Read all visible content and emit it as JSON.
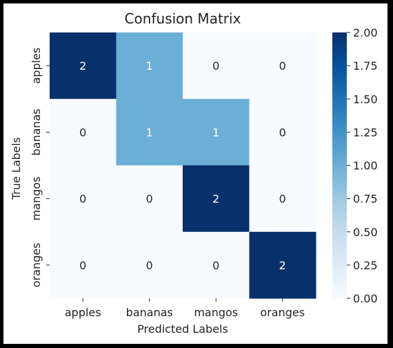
{
  "chart_data": {
    "type": "heatmap",
    "title": "Confusion Matrix",
    "xlabel": "Predicted Labels",
    "ylabel": "True Labels",
    "x_categories": [
      "apples",
      "bananas",
      "mangos",
      "oranges"
    ],
    "y_categories": [
      "apples",
      "bananas",
      "mangos",
      "oranges"
    ],
    "values": [
      [
        2,
        1,
        0,
        0
      ],
      [
        0,
        1,
        1,
        0
      ],
      [
        0,
        0,
        2,
        0
      ],
      [
        0,
        0,
        0,
        2
      ]
    ],
    "colorbar": {
      "range": [
        0,
        2
      ],
      "ticks": [
        "0.00",
        "0.25",
        "0.50",
        "0.75",
        "1.00",
        "1.25",
        "1.50",
        "1.75",
        "2.00"
      ],
      "colormap": "Blues",
      "color_low": "#f7fbff",
      "color_mid": "#6baed6",
      "color_high": "#08306b"
    }
  }
}
